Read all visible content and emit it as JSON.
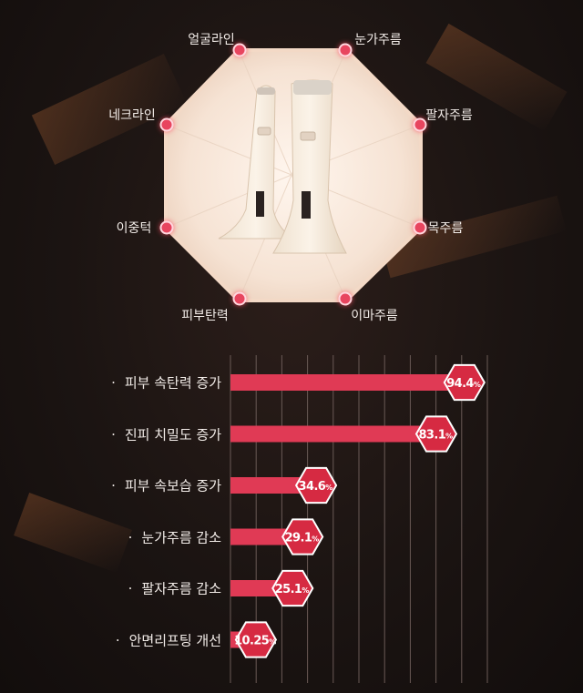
{
  "zones": [
    {
      "key": "jawline",
      "label": "얼굴라인"
    },
    {
      "key": "eye",
      "label": "눈가주름"
    },
    {
      "key": "neck",
      "label": "네크라인"
    },
    {
      "key": "nasolabial",
      "label": "팔자주름"
    },
    {
      "key": "chin",
      "label": "이중턱"
    },
    {
      "key": "neckwrinkle",
      "label": "목주름"
    },
    {
      "key": "elasticity",
      "label": "피부탄력"
    },
    {
      "key": "forehead",
      "label": "이마주름"
    }
  ],
  "colors": {
    "bar": "#e03a55",
    "badge": "#d62a42",
    "grid": "#6a5a56"
  },
  "chart_data": {
    "type": "bar",
    "orientation": "horizontal",
    "categories": [
      "피부 속탄력 증가",
      "진피 치밀도 증가",
      "피부 속보습 증가",
      "눈가주름 감소",
      "팔자주름 감소",
      "안면리프팅 개선"
    ],
    "values": [
      94.4,
      83.1,
      34.6,
      29.1,
      25.1,
      10.25
    ],
    "value_labels": [
      "94.4",
      "83.1",
      "34.6",
      "29.1",
      "25.1",
      "10.25"
    ],
    "unit": "%",
    "xlim": [
      0,
      100
    ],
    "grid": true
  }
}
